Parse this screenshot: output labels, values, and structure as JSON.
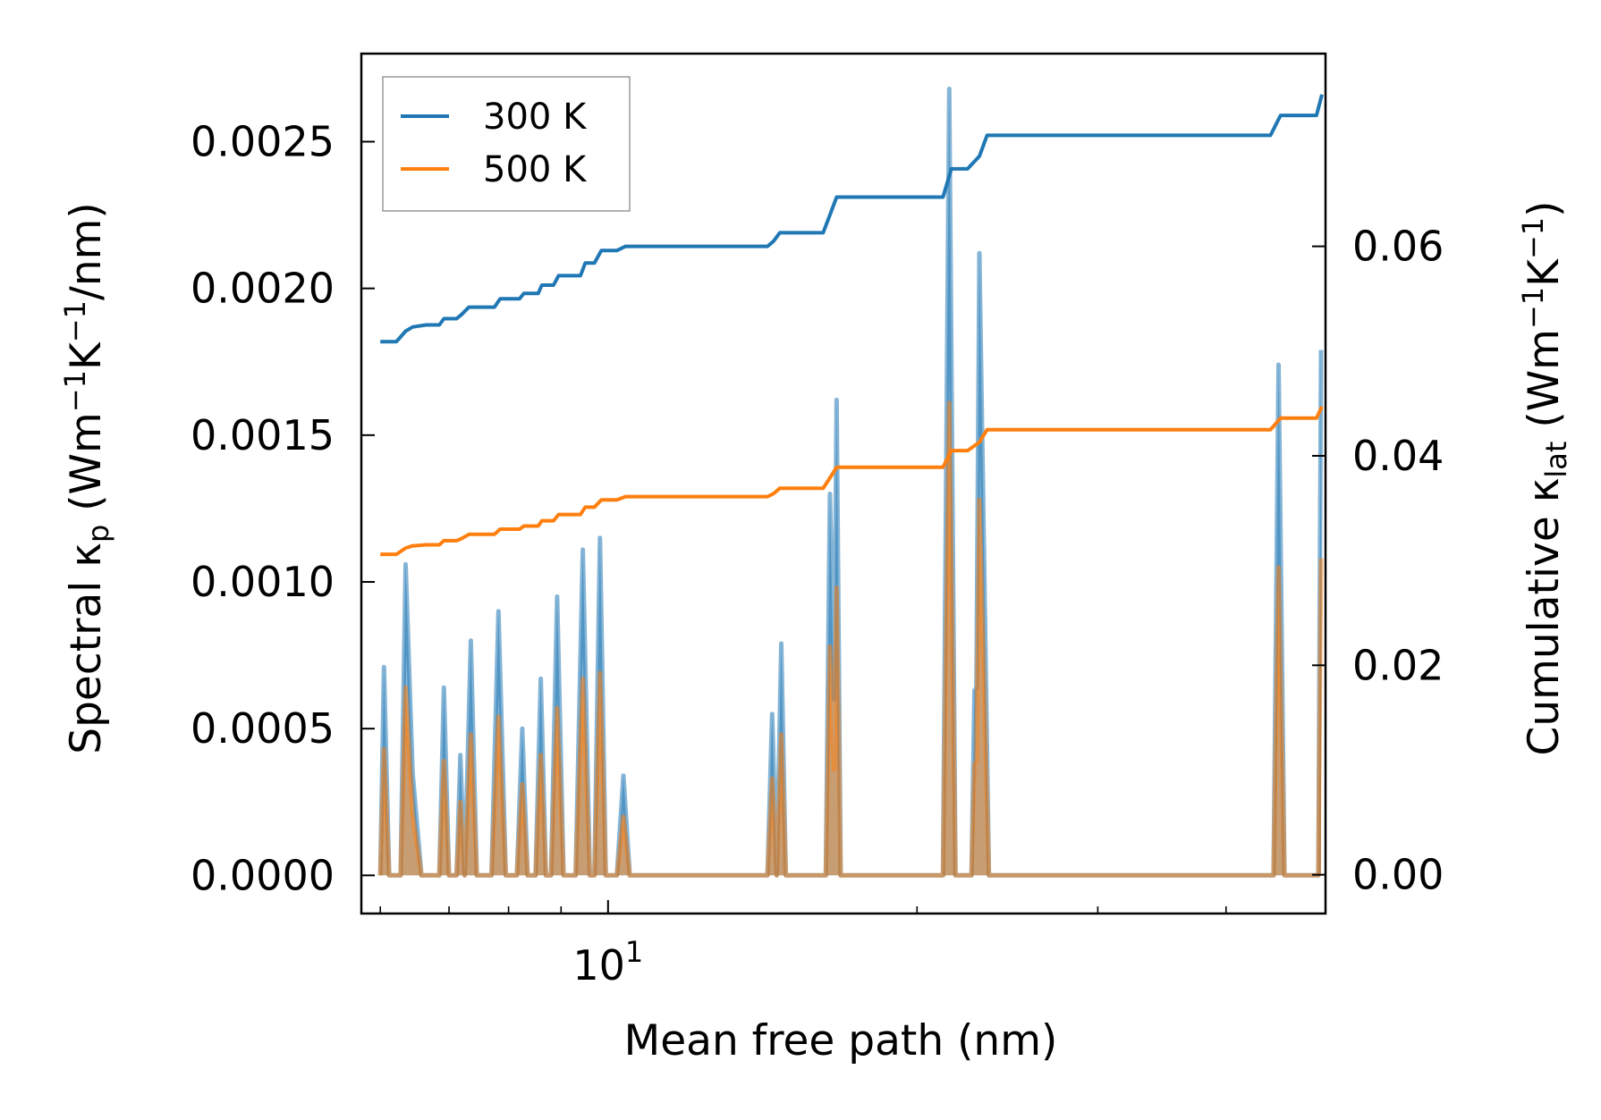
{
  "chart_data": {
    "type": "line",
    "xscale": "log",
    "xlabel": "Mean free path (nm)",
    "ylabel_left": {
      "prefix": "Spectral κ",
      "sub": "p",
      "units_prefix": " (Wm",
      "sup1": "−1",
      "mid": "K",
      "sup2": "−1",
      "suffix": "/nm)"
    },
    "ylabel_right": {
      "prefix": "Cumulative κ",
      "sub": "lat",
      "units_prefix": " (Wm",
      "sup1": "−1",
      "mid": "K",
      "sup2": "−1",
      "suffix": ")"
    },
    "xlim": [
      5.75,
      50
    ],
    "ylim_left": [
      -0.00013,
      0.0028
    ],
    "ylim_right": [
      -0.0037,
      0.0784
    ],
    "x_major_ticks": [
      {
        "value": 10,
        "base": "10",
        "exp": "1"
      }
    ],
    "x_minor_ticks": [
      6,
      7,
      8,
      9,
      20,
      30,
      40
    ],
    "yticks_left": [
      {
        "value": 0.0,
        "label": "0.0000"
      },
      {
        "value": 0.0005,
        "label": "0.0005"
      },
      {
        "value": 0.001,
        "label": "0.0010"
      },
      {
        "value": 0.0015,
        "label": "0.0015"
      },
      {
        "value": 0.002,
        "label": "0.0020"
      },
      {
        "value": 0.0025,
        "label": "0.0025"
      }
    ],
    "yticks_right": [
      {
        "value": 0.0,
        "label": "0.00"
      },
      {
        "value": 0.02,
        "label": "0.02"
      },
      {
        "value": 0.04,
        "label": "0.04"
      },
      {
        "value": 0.06,
        "label": "0.06"
      }
    ],
    "legend": {
      "position": "upper-left",
      "entries": [
        {
          "name": "300 K",
          "color": "#1f77b4"
        },
        {
          "name": "500 K",
          "color": "#ff7f0e"
        }
      ]
    },
    "series": [
      {
        "name": "300 K",
        "color": "#1f77b4",
        "spectral": [
          [
            6.0,
            0.0
          ],
          [
            6.05,
            0.00071
          ],
          [
            6.12,
            0.0
          ],
          [
            6.28,
            0.0
          ],
          [
            6.35,
            0.00106
          ],
          [
            6.45,
            0.00035
          ],
          [
            6.58,
            0.0
          ],
          [
            6.85,
            0.0
          ],
          [
            6.92,
            0.00064
          ],
          [
            7.0,
            0.0
          ],
          [
            7.12,
            0.0
          ],
          [
            7.18,
            0.00041
          ],
          [
            7.25,
            0.0
          ],
          [
            7.35,
            0.0008
          ],
          [
            7.45,
            0.0
          ],
          [
            7.7,
            0.0
          ],
          [
            7.82,
            0.0009
          ],
          [
            7.95,
            0.0
          ],
          [
            8.15,
            0.0
          ],
          [
            8.25,
            0.0005
          ],
          [
            8.35,
            0.0
          ],
          [
            8.5,
            0.0
          ],
          [
            8.6,
            0.00067
          ],
          [
            8.7,
            0.0
          ],
          [
            8.8,
            0.0
          ],
          [
            8.92,
            0.00095
          ],
          [
            9.05,
            0.0
          ],
          [
            9.3,
            0.0
          ],
          [
            9.45,
            0.00111
          ],
          [
            9.6,
            0.0
          ],
          [
            9.7,
            0.0
          ],
          [
            9.82,
            0.00115
          ],
          [
            9.95,
            0.0
          ],
          [
            10.2,
            0.0
          ],
          [
            10.35,
            0.00034
          ],
          [
            10.5,
            0.0
          ],
          [
            14.3,
            0.0
          ],
          [
            14.45,
            0.00055
          ],
          [
            14.6,
            0.0
          ],
          [
            14.75,
            0.00079
          ],
          [
            14.9,
            0.0
          ],
          [
            16.3,
            0.0
          ],
          [
            16.45,
            0.0013
          ],
          [
            16.6,
            0.0006
          ],
          [
            16.7,
            0.00162
          ],
          [
            16.85,
            0.0
          ],
          [
            21.2,
            0.0
          ],
          [
            21.5,
            0.00268
          ],
          [
            21.8,
            0.0
          ],
          [
            22.6,
            0.0
          ],
          [
            22.75,
            0.00063
          ],
          [
            22.85,
            0.00064
          ],
          [
            23.0,
            0.00212
          ],
          [
            23.5,
            0.0
          ],
          [
            44.5,
            0.0
          ],
          [
            45.0,
            0.00174
          ],
          [
            45.6,
            0.0
          ],
          [
            49.2,
            0.0
          ],
          [
            49.5,
            0.00179
          ]
        ],
        "cumulative": [
          [
            6.0,
            0.0509
          ],
          [
            6.22,
            0.0509
          ],
          [
            6.35,
            0.0519
          ],
          [
            6.45,
            0.0523
          ],
          [
            6.65,
            0.0525
          ],
          [
            6.85,
            0.0525
          ],
          [
            6.92,
            0.0531
          ],
          [
            7.12,
            0.0531
          ],
          [
            7.2,
            0.0535
          ],
          [
            7.32,
            0.0542
          ],
          [
            7.75,
            0.0542
          ],
          [
            7.85,
            0.055
          ],
          [
            8.2,
            0.055
          ],
          [
            8.28,
            0.0555
          ],
          [
            8.55,
            0.0555
          ],
          [
            8.62,
            0.0563
          ],
          [
            8.85,
            0.0563
          ],
          [
            8.95,
            0.0572
          ],
          [
            9.4,
            0.0572
          ],
          [
            9.5,
            0.0584
          ],
          [
            9.7,
            0.0584
          ],
          [
            9.85,
            0.0596
          ],
          [
            10.2,
            0.0596
          ],
          [
            10.4,
            0.06
          ],
          [
            14.3,
            0.06
          ],
          [
            14.5,
            0.0605
          ],
          [
            14.7,
            0.0613
          ],
          [
            16.2,
            0.0613
          ],
          [
            16.45,
            0.063
          ],
          [
            16.7,
            0.0647
          ],
          [
            21.2,
            0.0647
          ],
          [
            21.6,
            0.0674
          ],
          [
            22.4,
            0.0674
          ],
          [
            23.0,
            0.0686
          ],
          [
            23.4,
            0.0706
          ],
          [
            44.2,
            0.0706
          ],
          [
            45.2,
            0.0725
          ],
          [
            49.0,
            0.0725
          ],
          [
            49.6,
            0.0745
          ]
        ]
      },
      {
        "name": "500 K",
        "color": "#ff7f0e",
        "spectral": [
          [
            6.0,
            0.0
          ],
          [
            6.05,
            0.00043
          ],
          [
            6.12,
            0.0
          ],
          [
            6.28,
            0.0
          ],
          [
            6.35,
            0.00064
          ],
          [
            6.45,
            0.00021
          ],
          [
            6.58,
            0.0
          ],
          [
            6.85,
            0.0
          ],
          [
            6.92,
            0.00039
          ],
          [
            7.0,
            0.0
          ],
          [
            7.12,
            0.0
          ],
          [
            7.18,
            0.00025
          ],
          [
            7.25,
            0.0
          ],
          [
            7.35,
            0.00048
          ],
          [
            7.45,
            0.0
          ],
          [
            7.7,
            0.0
          ],
          [
            7.82,
            0.00054
          ],
          [
            7.95,
            0.0
          ],
          [
            8.15,
            0.0
          ],
          [
            8.25,
            0.00031
          ],
          [
            8.35,
            0.0
          ],
          [
            8.5,
            0.0
          ],
          [
            8.6,
            0.00041
          ],
          [
            8.7,
            0.0
          ],
          [
            8.8,
            0.0
          ],
          [
            8.92,
            0.00057
          ],
          [
            9.05,
            0.0
          ],
          [
            9.3,
            0.0
          ],
          [
            9.45,
            0.00067
          ],
          [
            9.6,
            0.0
          ],
          [
            9.7,
            0.0
          ],
          [
            9.82,
            0.00069
          ],
          [
            9.95,
            0.0
          ],
          [
            10.2,
            0.0
          ],
          [
            10.35,
            0.0002
          ],
          [
            10.5,
            0.0
          ],
          [
            14.3,
            0.0
          ],
          [
            14.45,
            0.00033
          ],
          [
            14.6,
            0.0
          ],
          [
            14.75,
            0.00048
          ],
          [
            14.9,
            0.0
          ],
          [
            16.3,
            0.0
          ],
          [
            16.45,
            0.00078
          ],
          [
            16.6,
            0.00036
          ],
          [
            16.7,
            0.00098
          ],
          [
            16.85,
            0.0
          ],
          [
            21.2,
            0.0
          ],
          [
            21.5,
            0.00161
          ],
          [
            21.8,
            0.0
          ],
          [
            22.6,
            0.0
          ],
          [
            22.75,
            0.00038
          ],
          [
            22.85,
            0.00039
          ],
          [
            23.0,
            0.00128
          ],
          [
            23.5,
            0.0
          ],
          [
            44.5,
            0.0
          ],
          [
            45.0,
            0.00105
          ],
          [
            45.6,
            0.0
          ],
          [
            49.2,
            0.0
          ],
          [
            49.5,
            0.00108
          ]
        ],
        "cumulative": [
          [
            6.0,
            0.0306
          ],
          [
            6.22,
            0.0306
          ],
          [
            6.35,
            0.0312
          ],
          [
            6.45,
            0.0314
          ],
          [
            6.65,
            0.0315
          ],
          [
            6.85,
            0.0315
          ],
          [
            6.92,
            0.0319
          ],
          [
            7.12,
            0.0319
          ],
          [
            7.2,
            0.0321
          ],
          [
            7.32,
            0.0325
          ],
          [
            7.75,
            0.0325
          ],
          [
            7.85,
            0.033
          ],
          [
            8.2,
            0.033
          ],
          [
            8.28,
            0.0333
          ],
          [
            8.55,
            0.0333
          ],
          [
            8.62,
            0.0338
          ],
          [
            8.85,
            0.0338
          ],
          [
            8.95,
            0.0344
          ],
          [
            9.4,
            0.0344
          ],
          [
            9.5,
            0.0351
          ],
          [
            9.7,
            0.0351
          ],
          [
            9.85,
            0.0358
          ],
          [
            10.2,
            0.0358
          ],
          [
            10.4,
            0.0361
          ],
          [
            14.3,
            0.0361
          ],
          [
            14.5,
            0.0364
          ],
          [
            14.7,
            0.0369
          ],
          [
            16.2,
            0.0369
          ],
          [
            16.45,
            0.0379
          ],
          [
            16.7,
            0.0389
          ],
          [
            21.2,
            0.0389
          ],
          [
            21.6,
            0.0405
          ],
          [
            22.4,
            0.0405
          ],
          [
            23.0,
            0.0413
          ],
          [
            23.4,
            0.0425
          ],
          [
            44.2,
            0.0425
          ],
          [
            45.2,
            0.0436
          ],
          [
            49.0,
            0.0436
          ],
          [
            49.6,
            0.0447
          ]
        ]
      }
    ]
  }
}
